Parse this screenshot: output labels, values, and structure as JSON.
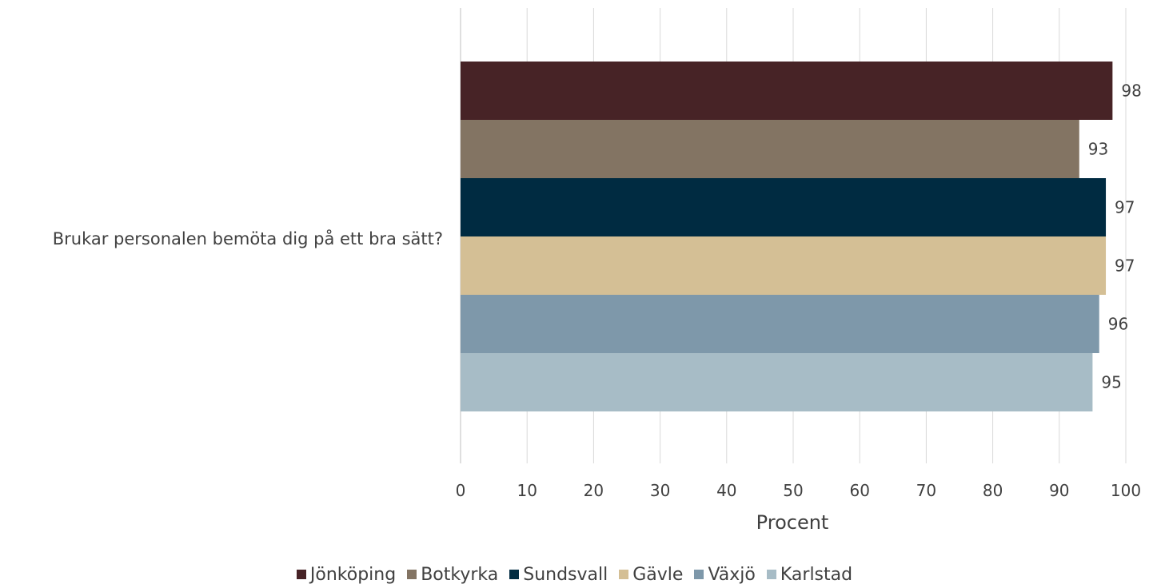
{
  "chart_data": {
    "type": "bar",
    "orientation": "horizontal",
    "categories": [
      "Brukar personalen bemöta dig på ett bra sätt?"
    ],
    "series": [
      {
        "name": "Jönköping",
        "values": [
          98
        ],
        "color": "#472326"
      },
      {
        "name": "Botkyrka",
        "values": [
          93
        ],
        "color": "#837463"
      },
      {
        "name": "Sundsvall",
        "values": [
          97
        ],
        "color": "#002b41"
      },
      {
        "name": "Gävle",
        "values": [
          97
        ],
        "color": "#d4bf95"
      },
      {
        "name": "Växjö",
        "values": [
          96
        ],
        "color": "#7e98aa"
      },
      {
        "name": "Karlstad",
        "values": [
          95
        ],
        "color": "#a7bcc6"
      }
    ],
    "xlabel": "Procent",
    "xlim": [
      0,
      100
    ],
    "xticks": [
      0,
      10,
      20,
      30,
      40,
      50,
      60,
      70,
      80,
      90,
      100
    ],
    "grid": true,
    "legend_position": "bottom",
    "data_labels": true
  }
}
